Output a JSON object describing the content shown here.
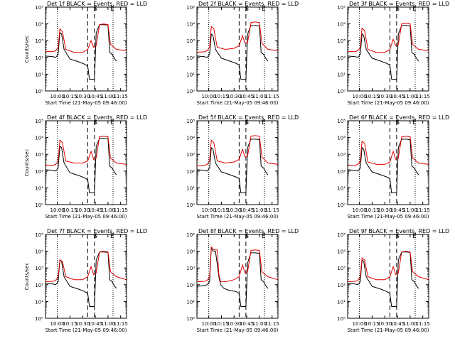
{
  "colors": {
    "events": "#000000",
    "lld": "#e00000",
    "axes": "#000000"
  },
  "shared": {
    "xlabel": "Start Time (21-May-05 09:46:00)",
    "ylabel": "Counts/sec",
    "x_tick_labels": [
      "10:00",
      "10:15",
      "10:30",
      "10:45",
      "11:00",
      "11:15"
    ],
    "y_tick_labels": [
      "10⁰",
      "10¹",
      "10²",
      "10³",
      "10⁴",
      "10⁵"
    ],
    "markers": [
      "S",
      "E"
    ]
  },
  "chart_data": [
    {
      "type": "line",
      "title": "Det 1f BLACK = Events, RED = LLD",
      "xlabel": "Start Time (21-May-05 09:46:00)",
      "ylabel": "Counts/sec",
      "x_range": [
        "09:46",
        "11:22"
      ],
      "y_range": [
        1,
        100000
      ],
      "y_scale": "log",
      "series": [
        {
          "name": "Events",
          "color": "#000000",
          "x": [
            "09:46",
            "09:55",
            "09:58",
            "10:01",
            "10:03",
            "10:05",
            "10:08",
            "10:15",
            "10:25",
            "10:32",
            "10:36",
            "10:38",
            "10:44",
            "10:46",
            "10:50",
            "10:55",
            "11:00",
            "11:02",
            "11:05",
            "11:08",
            "11:10"
          ],
          "y": [
            120,
            110,
            100,
            150,
            3000,
            2500,
            300,
            80,
            55,
            40,
            30,
            5,
            5,
            3000,
            9000,
            9000,
            8500,
            200,
            150,
            80,
            60
          ]
        },
        {
          "name": "LLD",
          "color": "#e00000",
          "x": [
            "09:46",
            "09:55",
            "09:58",
            "10:01",
            "10:03",
            "10:06",
            "10:10",
            "10:20",
            "10:30",
            "10:36",
            "10:40",
            "10:43",
            "10:46",
            "10:50",
            "10:55",
            "11:00",
            "11:03",
            "11:10",
            "11:22"
          ],
          "y": [
            230,
            220,
            250,
            400,
            5000,
            3500,
            300,
            200,
            200,
            300,
            1000,
            400,
            500,
            9000,
            10000,
            9000,
            600,
            300,
            250
          ]
        }
      ]
    },
    {
      "type": "line",
      "title": "Det 2f BLACK = Events, RED = LLD",
      "xlabel": "Start Time (21-May-05 09:46:00)",
      "ylabel": "Counts/sec",
      "x_range": [
        "09:46",
        "11:22"
      ],
      "y_range": [
        1,
        100000
      ],
      "y_scale": "log",
      "series": [
        {
          "name": "Events",
          "color": "#000000",
          "x": [
            "09:46",
            "09:55",
            "09:58",
            "10:01",
            "10:03",
            "10:05",
            "10:08",
            "10:15",
            "10:25",
            "10:32",
            "10:36",
            "10:38",
            "10:44",
            "10:46",
            "10:50",
            "10:55",
            "11:00",
            "11:02",
            "11:05",
            "11:08",
            "11:10"
          ],
          "y": [
            120,
            110,
            100,
            150,
            2500,
            2000,
            300,
            90,
            60,
            45,
            35,
            5,
            5,
            2500,
            8000,
            8000,
            7500,
            200,
            150,
            80,
            60
          ]
        },
        {
          "name": "LLD",
          "color": "#e00000",
          "x": [
            "09:46",
            "09:55",
            "09:58",
            "10:01",
            "10:03",
            "10:06",
            "10:10",
            "10:20",
            "10:30",
            "10:36",
            "10:40",
            "10:43",
            "10:46",
            "10:50",
            "10:55",
            "11:00",
            "11:03",
            "11:10",
            "11:22"
          ],
          "y": [
            200,
            220,
            250,
            400,
            7000,
            5000,
            400,
            300,
            350,
            500,
            2000,
            700,
            800,
            12000,
            13000,
            12000,
            700,
            300,
            250
          ]
        }
      ]
    },
    {
      "type": "line",
      "title": "Det 3f BLACK = Events, RED = LLD",
      "xlabel": "Start Time (21-May-05 09:46:00)",
      "ylabel": "Counts/sec",
      "x_range": [
        "09:46",
        "11:22"
      ],
      "y_range": [
        1,
        100000
      ],
      "y_scale": "log",
      "series": [
        {
          "name": "Events",
          "color": "#000000",
          "x": [
            "09:46",
            "09:55",
            "09:58",
            "10:01",
            "10:03",
            "10:05",
            "10:08",
            "10:15",
            "10:25",
            "10:32",
            "10:36",
            "10:38",
            "10:44",
            "10:46",
            "10:50",
            "10:55",
            "11:00",
            "11:02",
            "11:05",
            "11:08",
            "11:10"
          ],
          "y": [
            120,
            110,
            100,
            150,
            2500,
            2000,
            300,
            90,
            60,
            45,
            35,
            5,
            5,
            2500,
            8000,
            8000,
            7500,
            200,
            150,
            80,
            60
          ]
        },
        {
          "name": "LLD",
          "color": "#e00000",
          "x": [
            "09:46",
            "09:55",
            "09:58",
            "10:01",
            "10:03",
            "10:06",
            "10:10",
            "10:20",
            "10:30",
            "10:36",
            "10:40",
            "10:43",
            "10:46",
            "10:50",
            "10:55",
            "11:00",
            "11:03",
            "11:10",
            "11:22"
          ],
          "y": [
            230,
            220,
            250,
            400,
            5500,
            4000,
            300,
            200,
            200,
            300,
            1200,
            500,
            600,
            10000,
            11000,
            10000,
            600,
            300,
            250
          ]
        }
      ]
    },
    {
      "type": "line",
      "title": "Det 4f BLACK = Events, RED = LLD",
      "xlabel": "Start Time (21-May-05 09:46:00)",
      "ylabel": "Counts/sec",
      "x_range": [
        "09:46",
        "11:22"
      ],
      "y_range": [
        1,
        100000
      ],
      "y_scale": "log",
      "series": [
        {
          "name": "Events",
          "color": "#000000",
          "x": [
            "09:46",
            "09:55",
            "09:58",
            "10:01",
            "10:03",
            "10:05",
            "10:08",
            "10:15",
            "10:25",
            "10:32",
            "10:36",
            "10:38",
            "10:44",
            "10:46",
            "10:50",
            "10:55",
            "11:00",
            "11:02",
            "11:05",
            "11:08",
            "11:10"
          ],
          "y": [
            120,
            110,
            100,
            150,
            3000,
            2500,
            300,
            80,
            55,
            40,
            30,
            5,
            5,
            3000,
            9000,
            9000,
            8500,
            200,
            150,
            80,
            60
          ]
        },
        {
          "name": "LLD",
          "color": "#e00000",
          "x": [
            "09:46",
            "09:55",
            "09:58",
            "10:01",
            "10:03",
            "10:06",
            "10:10",
            "10:20",
            "10:30",
            "10:36",
            "10:40",
            "10:43",
            "10:46",
            "10:50",
            "10:55",
            "11:00",
            "11:03",
            "11:10",
            "11:22"
          ],
          "y": [
            230,
            220,
            250,
            400,
            7000,
            5000,
            400,
            300,
            300,
            400,
            1500,
            500,
            600,
            11000,
            12000,
            11000,
            600,
            300,
            250
          ]
        }
      ]
    },
    {
      "type": "line",
      "title": "Det 5f BLACK = Events, RED = LLD",
      "xlabel": "Start Time (21-May-05 09:46:00)",
      "ylabel": "Counts/sec",
      "x_range": [
        "09:46",
        "11:22"
      ],
      "y_range": [
        1,
        100000
      ],
      "y_scale": "log",
      "series": [
        {
          "name": "Events",
          "color": "#000000",
          "x": [
            "09:46",
            "09:55",
            "09:58",
            "10:01",
            "10:03",
            "10:05",
            "10:08",
            "10:15",
            "10:25",
            "10:32",
            "10:36",
            "10:38",
            "10:44",
            "10:46",
            "10:50",
            "10:55",
            "11:00",
            "11:02",
            "11:05",
            "11:08",
            "11:10"
          ],
          "y": [
            120,
            110,
            100,
            150,
            2500,
            2000,
            300,
            90,
            60,
            45,
            35,
            5,
            5,
            2500,
            8000,
            8000,
            7500,
            200,
            150,
            80,
            60
          ]
        },
        {
          "name": "LLD",
          "color": "#e00000",
          "x": [
            "09:46",
            "09:55",
            "09:58",
            "10:01",
            "10:03",
            "10:06",
            "10:10",
            "10:20",
            "10:30",
            "10:36",
            "10:40",
            "10:43",
            "10:46",
            "10:50",
            "10:55",
            "11:00",
            "11:03",
            "11:10",
            "11:22"
          ],
          "y": [
            200,
            220,
            250,
            400,
            7000,
            5000,
            400,
            300,
            350,
            500,
            2000,
            700,
            800,
            12000,
            13000,
            12000,
            700,
            300,
            250
          ]
        }
      ]
    },
    {
      "type": "line",
      "title": "Det 6f BLACK = Events, RED = LLD",
      "xlabel": "Start Time (21-May-05 09:46:00)",
      "ylabel": "Counts/sec",
      "x_range": [
        "09:46",
        "11:22"
      ],
      "y_range": [
        1,
        100000
      ],
      "y_scale": "log",
      "series": [
        {
          "name": "Events",
          "color": "#000000",
          "x": [
            "09:46",
            "09:55",
            "09:58",
            "10:01",
            "10:03",
            "10:05",
            "10:08",
            "10:15",
            "10:25",
            "10:32",
            "10:36",
            "10:38",
            "10:44",
            "10:46",
            "10:50",
            "10:55",
            "11:00",
            "11:02",
            "11:05",
            "11:08",
            "11:10"
          ],
          "y": [
            120,
            110,
            100,
            150,
            2500,
            2000,
            300,
            90,
            60,
            45,
            35,
            5,
            5,
            2500,
            8000,
            8000,
            7500,
            200,
            150,
            80,
            60
          ]
        },
        {
          "name": "LLD",
          "color": "#e00000",
          "x": [
            "09:46",
            "09:55",
            "09:58",
            "10:01",
            "10:03",
            "10:06",
            "10:10",
            "10:20",
            "10:30",
            "10:36",
            "10:40",
            "10:43",
            "10:46",
            "10:50",
            "10:55",
            "11:00",
            "11:03",
            "11:10",
            "11:22"
          ],
          "y": [
            230,
            220,
            250,
            400,
            6000,
            4500,
            350,
            250,
            250,
            350,
            1500,
            500,
            600,
            11000,
            12000,
            11000,
            600,
            300,
            250
          ]
        }
      ]
    },
    {
      "type": "line",
      "title": "Det 7f BLACK = Events, RED = LLD",
      "xlabel": "Start Time (21-May-05 09:46:00)",
      "ylabel": "Counts/sec",
      "x_range": [
        "09:46",
        "11:22"
      ],
      "y_range": [
        1,
        100000
      ],
      "y_scale": "log",
      "series": [
        {
          "name": "Events",
          "color": "#000000",
          "x": [
            "09:46",
            "09:55",
            "09:58",
            "10:01",
            "10:03",
            "10:05",
            "10:08",
            "10:15",
            "10:25",
            "10:32",
            "10:36",
            "10:38",
            "10:44",
            "10:46",
            "10:50",
            "10:55",
            "11:00",
            "11:02",
            "11:05",
            "11:08",
            "11:10"
          ],
          "y": [
            120,
            110,
            100,
            150,
            3000,
            2500,
            300,
            80,
            55,
            40,
            30,
            5,
            5,
            3000,
            9000,
            9000,
            8500,
            200,
            150,
            80,
            60
          ]
        },
        {
          "name": "LLD",
          "color": "#e00000",
          "x": [
            "09:46",
            "09:55",
            "09:58",
            "10:01",
            "10:03",
            "10:06",
            "10:10",
            "10:20",
            "10:30",
            "10:36",
            "10:40",
            "10:43",
            "10:46",
            "10:50",
            "10:55",
            "11:00",
            "11:03",
            "11:10",
            "11:22"
          ],
          "y": [
            150,
            160,
            180,
            300,
            3000,
            2500,
            300,
            200,
            200,
            300,
            1200,
            400,
            500,
            9000,
            10000,
            9000,
            600,
            300,
            200
          ]
        }
      ]
    },
    {
      "type": "line",
      "title": "Det 8f BLACK = Events, RED = LLD",
      "xlabel": "Start Time (21-May-05 09:46:00)",
      "ylabel": "Counts/sec",
      "x_range": [
        "09:46",
        "11:22"
      ],
      "y_range": [
        1,
        100000
      ],
      "y_scale": "log",
      "series": [
        {
          "name": "Events",
          "color": "#000000",
          "x": [
            "09:46",
            "09:55",
            "09:58",
            "10:01",
            "10:03",
            "10:05",
            "10:08",
            "10:12",
            "10:14",
            "10:18",
            "10:22",
            "10:25",
            "10:32",
            "10:36",
            "10:38",
            "10:44",
            "10:46",
            "10:50",
            "10:55",
            "11:00",
            "11:02",
            "11:05",
            "11:08",
            "11:10"
          ],
          "y": [
            80,
            90,
            100,
            150,
            15000,
            10000,
            10000,
            300,
            100,
            60,
            50,
            45,
            40,
            30,
            5,
            5,
            2000,
            8000,
            8000,
            7500,
            200,
            150,
            80,
            60
          ]
        },
        {
          "name": "LLD",
          "color": "#e00000",
          "x": [
            "09:46",
            "09:55",
            "09:58",
            "10:01",
            "10:03",
            "10:06",
            "10:10",
            "10:12",
            "10:14",
            "10:20",
            "10:30",
            "10:36",
            "10:40",
            "10:43",
            "10:46",
            "10:50",
            "10:55",
            "11:00",
            "11:03",
            "11:10",
            "11:22"
          ],
          "y": [
            150,
            160,
            180,
            300,
            18000,
            12000,
            12000,
            400,
            150,
            150,
            200,
            300,
            1500,
            500,
            600,
            11000,
            12000,
            11000,
            600,
            300,
            200
          ]
        }
      ]
    },
    {
      "type": "line",
      "title": "Det 9f BLACK = Events, RED = LLD",
      "xlabel": "Start Time (21-May-05 09:46:00)",
      "ylabel": "Counts/sec",
      "x_range": [
        "09:46",
        "11:22"
      ],
      "y_range": [
        1,
        100000
      ],
      "y_scale": "log",
      "series": [
        {
          "name": "Events",
          "color": "#000000",
          "x": [
            "09:46",
            "09:55",
            "09:58",
            "10:01",
            "10:03",
            "10:05",
            "10:08",
            "10:15",
            "10:25",
            "10:32",
            "10:36",
            "10:38",
            "10:44",
            "10:46",
            "10:50",
            "10:55",
            "11:00",
            "11:02",
            "11:05",
            "11:08",
            "11:10"
          ],
          "y": [
            120,
            110,
            100,
            150,
            3000,
            2500,
            300,
            80,
            55,
            40,
            30,
            5,
            5,
            3000,
            9000,
            9000,
            8500,
            200,
            150,
            80,
            60
          ]
        },
        {
          "name": "LLD",
          "color": "#e00000",
          "x": [
            "09:46",
            "09:55",
            "09:58",
            "10:01",
            "10:03",
            "10:06",
            "10:10",
            "10:20",
            "10:30",
            "10:36",
            "10:40",
            "10:43",
            "10:46",
            "10:50",
            "10:55",
            "11:00",
            "11:03",
            "11:10",
            "11:22"
          ],
          "y": [
            150,
            160,
            180,
            300,
            4000,
            3000,
            300,
            200,
            200,
            300,
            1200,
            400,
            500,
            9000,
            10000,
            9000,
            600,
            300,
            200
          ]
        }
      ]
    }
  ]
}
